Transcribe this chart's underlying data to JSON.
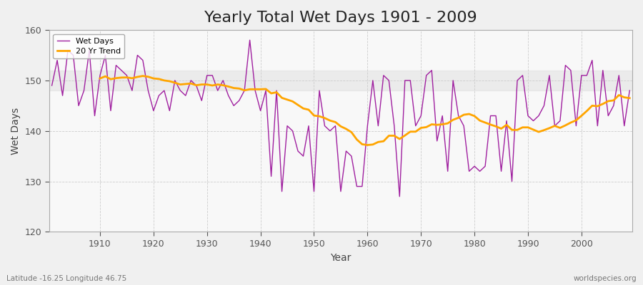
{
  "title": "Yearly Total Wet Days 1901 - 2009",
  "xlabel": "Year",
  "ylabel": "Wet Days",
  "ylim": [
    120,
    160
  ],
  "xlim": [
    1901,
    2009
  ],
  "yticks": [
    120,
    130,
    140,
    150,
    160
  ],
  "xticks": [
    1910,
    1920,
    1930,
    1940,
    1950,
    1960,
    1970,
    1980,
    1990,
    2000
  ],
  "wet_days_color": "#A020A0",
  "trend_color": "#FFA500",
  "bg_color": "#F0F0F0",
  "plot_bg_color": "#F8F8F8",
  "grid_color": "#CCCCCC",
  "title_fontsize": 16,
  "label_fontsize": 10,
  "tick_fontsize": 9,
  "footer_left": "Latitude -16.25 Longitude 46.75",
  "footer_right": "worldspecies.org",
  "wet_days": [
    149,
    154,
    147,
    156,
    155,
    145,
    148,
    156,
    143,
    151,
    155,
    144,
    153,
    152,
    151,
    148,
    155,
    154,
    148,
    144,
    147,
    148,
    144,
    150,
    148,
    147,
    150,
    149,
    146,
    151,
    151,
    148,
    150,
    147,
    145,
    146,
    148,
    158,
    148,
    144,
    148,
    131,
    148,
    128,
    141,
    140,
    136,
    135,
    141,
    128,
    148,
    141,
    140,
    141,
    128,
    136,
    135,
    129,
    129,
    141,
    150,
    141,
    151,
    150,
    141,
    127,
    150,
    150,
    141,
    143,
    151,
    152,
    138,
    143,
    132,
    150,
    143,
    141,
    132,
    133,
    132,
    133,
    143,
    143,
    132,
    142,
    130,
    150,
    151,
    143,
    142,
    143,
    145,
    151,
    141,
    142,
    153,
    152,
    141,
    151,
    151,
    154,
    141,
    152,
    143,
    145,
    151,
    141,
    148
  ]
}
